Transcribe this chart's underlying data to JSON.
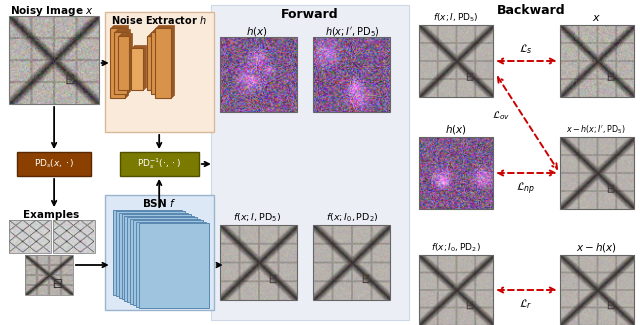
{
  "bg_color": "#ffffff",
  "forward_bg": "#e8edf4",
  "noise_extractor_bg": "#faeada",
  "bsn_bg": "#dce8f5",
  "brown_color": "#8B4000",
  "olive_color": "#7a7a00",
  "forward_label": "Forward",
  "backward_label": "Backward",
  "noisy_image_label": "Noisy Image $x$",
  "examples_label": "Examples",
  "noise_extractor_label": "Noise Extractor $h$",
  "bsn_label": "BSN $f$",
  "pd_label": "$\\mathrm{PD}_s(x,\\cdot)$",
  "pd_inv_label": "$\\mathrm{PD}_s^{-1}(\\cdot,\\cdot)$",
  "Ls_label": "$\\mathcal{L}_s$",
  "Lov_label": "$\\mathcal{L}_{ov}$",
  "Lnp_label": "$\\mathcal{L}_{np}$",
  "Lr_label": "$\\mathcal{L}_r$",
  "red_arrow": "#cc0000"
}
